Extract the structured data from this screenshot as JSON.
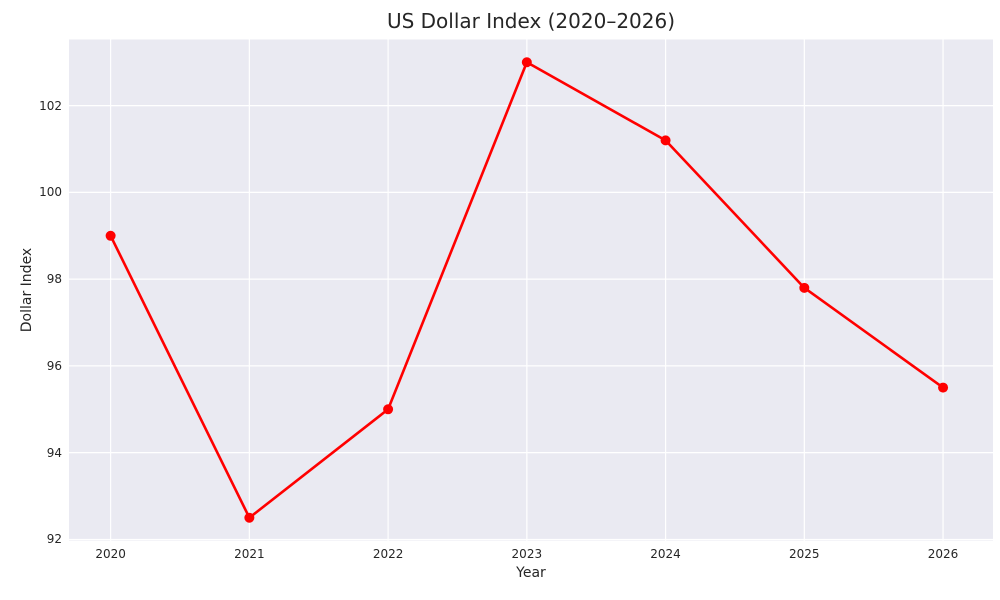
{
  "title": "US Dollar Index (2020–2026)",
  "chart_data": {
    "type": "line",
    "title": "US Dollar Index (2020–2026)",
    "xlabel": "Year",
    "ylabel": "Dollar Index",
    "x": [
      2020,
      2021,
      2022,
      2023,
      2024,
      2025,
      2026
    ],
    "series": [
      {
        "name": "US Dollar Index",
        "values": [
          99.0,
          92.5,
          95.0,
          103.0,
          101.2,
          97.8,
          95.5
        ]
      }
    ],
    "xticks": [
      "2020",
      "2021",
      "2022",
      "2023",
      "2024",
      "2025",
      "2026"
    ],
    "yticks": [
      92,
      94,
      96,
      98,
      100,
      102
    ],
    "xlim": [
      2019.7,
      2026.36
    ],
    "ylim": [
      91.975,
      103.525
    ],
    "grid": true,
    "legend": false,
    "style": {
      "line_color": "#ff0000",
      "marker_color": "#ff0000",
      "line_width": 2.6,
      "marker_radius": 5,
      "plot_background": "#eaeaf2",
      "grid_color": "#ffffff",
      "grid_width": 1.2,
      "text_color": "#262626",
      "figure_background": "#ffffff"
    }
  }
}
